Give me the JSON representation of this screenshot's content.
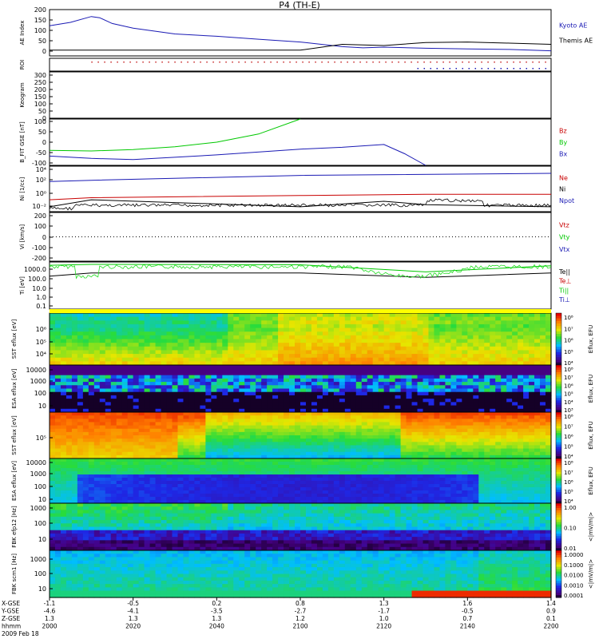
{
  "title": "P4 (TH-E)",
  "chart_data": [
    {
      "type": "line",
      "ylabel": "AE Index",
      "ylim": [
        0,
        200
      ],
      "yticks": [
        "200",
        "150",
        "100",
        "50",
        "0"
      ],
      "series": [
        {
          "name": "Kyoto AE",
          "color": "#1a1ab4",
          "x": [
            "2000",
            "2005",
            "2010",
            "2012",
            "2015",
            "2020",
            "2030",
            "2040",
            "2050",
            "2100",
            "2110",
            "2115",
            "2120",
            "2130",
            "2140",
            "2150",
            "2200"
          ],
          "values": [
            130,
            145,
            170,
            165,
            140,
            120,
            95,
            85,
            72,
            60,
            40,
            35,
            38,
            33,
            30,
            28,
            22
          ]
        },
        {
          "name": "Themis AE",
          "color": "#000000",
          "x": [
            "2000",
            "2020",
            "2040",
            "2100",
            "2110",
            "2120",
            "2130",
            "2140",
            "2150",
            "2200"
          ],
          "values": [
            25,
            25,
            25,
            25,
            50,
            45,
            58,
            60,
            55,
            50
          ]
        }
      ]
    },
    {
      "type": "scatter",
      "ylabel": "ROI",
      "series": [
        {
          "name": "",
          "color": "#c82828",
          "x_start": "2010",
          "x_end": "2200"
        },
        {
          "name": "",
          "color": "#1a1ab4",
          "x_start": "2128",
          "x_end": "2200"
        }
      ]
    },
    {
      "type": "heatmap",
      "ylabel": "Keogram",
      "yticks": [
        "300",
        "250",
        "200",
        "150",
        "100",
        "50",
        "0"
      ]
    },
    {
      "type": "line",
      "ylabel": "B_FIT GSE [nT]",
      "ylim": [
        -100,
        100
      ],
      "yticks": [
        "100",
        "50",
        "0",
        "-50",
        "-100"
      ],
      "series": [
        {
          "name": "Bz",
          "color": "#c80000",
          "x": [],
          "values": []
        },
        {
          "name": "By",
          "color": "#00c800",
          "x": [
            "2000",
            "2010",
            "2020",
            "2030",
            "2040",
            "2050",
            "2100"
          ],
          "values": [
            -35,
            -38,
            -32,
            -20,
            0,
            35,
            100
          ]
        },
        {
          "name": "Bx",
          "color": "#1a1ab4",
          "x": [
            "2000",
            "2010",
            "2020",
            "2040",
            "2100",
            "2110",
            "2120",
            "2125",
            "2130"
          ],
          "values": [
            -60,
            -70,
            -75,
            -55,
            -30,
            -22,
            -10,
            -50,
            -100
          ]
        }
      ]
    },
    {
      "type": "line",
      "ylabel": "Ni [1/cc]",
      "yticks": [
        "10⁴",
        "10²",
        "10⁰",
        "10⁻²"
      ],
      "series": [
        {
          "name": "Ne",
          "color": "#c80000",
          "x": [
            "2000",
            "2010",
            "2100",
            "2130",
            "2200"
          ],
          "values": [
            0.5,
            1.0,
            2.0,
            3.0,
            3.0
          ]
        },
        {
          "name": "Ni",
          "color": "#000000",
          "x": [
            "2000",
            "2010",
            "2100",
            "2120",
            "2130",
            "2200"
          ],
          "values": [
            0.05,
            0.5,
            0.05,
            0.3,
            0.1,
            0.05
          ]
        },
        {
          "name": "Npot",
          "color": "#1a1ab4",
          "x": [
            "2000",
            "2010",
            "2100",
            "2200"
          ],
          "values": [
            200,
            300,
            1500,
            3000
          ]
        }
      ]
    },
    {
      "type": "line",
      "ylabel": "Vi [km/s]",
      "ylim": [
        -200,
        200
      ],
      "yticks": [
        "200",
        "100",
        "0",
        "-100",
        "-200"
      ],
      "series": [
        {
          "name": "Vtz",
          "color": "#c80000",
          "x": [],
          "values": []
        },
        {
          "name": "Vty",
          "color": "#00c800",
          "x": [],
          "values": []
        },
        {
          "name": "Vtx",
          "color": "#1a1ab4",
          "x": [],
          "values": []
        }
      ]
    },
    {
      "type": "line",
      "ylabel": "Ti [eV]",
      "yticks": [
        "1000.0",
        "100.0",
        "10.0",
        "1.0",
        "0.1"
      ],
      "series": [
        {
          "name": "Te||",
          "color": "#000000",
          "x": [
            "2000",
            "2010",
            "2100",
            "2130",
            "2200"
          ],
          "values": [
            100,
            200,
            200,
            80,
            200
          ]
        },
        {
          "name": "Te⊥",
          "color": "#c80000",
          "x": [],
          "values": []
        },
        {
          "name": "Ti||",
          "color": "#00c800",
          "x": [
            "2000",
            "2010",
            "2100",
            "2130",
            "2200"
          ],
          "values": [
            1000,
            1200,
            1100,
            250,
            900
          ]
        },
        {
          "name": "Ti⊥",
          "color": "#1a1ab4",
          "x": [],
          "values": []
        }
      ]
    },
    {
      "type": "heatmap",
      "ylabel": "SST eflux [eV]",
      "yticks": [
        "10⁶",
        "10⁵",
        "10⁴"
      ],
      "colorbar_label": "Eflux, EFU",
      "colorbar_ticks": [
        "10⁸",
        "10⁷",
        "10⁶",
        "10⁵",
        "10⁴"
      ]
    },
    {
      "type": "heatmap",
      "ylabel": "ESA eflux [eV]",
      "yticks": [
        "10000",
        "1000",
        "100",
        "10"
      ],
      "colorbar_label": "Eflux, EFU",
      "colorbar_ticks": [
        "10⁸",
        "10⁷",
        "10⁶",
        "10⁵",
        "10⁴",
        "10³"
      ]
    },
    {
      "type": "heatmap",
      "ylabel": "SST eflux [eV]",
      "yticks": [
        "10⁵"
      ],
      "colorbar_label": "Eflux, EFU",
      "colorbar_ticks": [
        "10⁸",
        "10⁷",
        "10⁶",
        "10⁵",
        "10⁴"
      ]
    },
    {
      "type": "heatmap",
      "ylabel": "ESA eflux [eV]",
      "yticks": [
        "10000",
        "1000",
        "100",
        "10"
      ],
      "colorbar_label": "Eflux, EFU",
      "colorbar_ticks": [
        "10⁸",
        "10⁷",
        "10⁶",
        "10⁵",
        "10⁴"
      ]
    },
    {
      "type": "heatmap",
      "ylabel": "FBK efp12 [Hz]",
      "yticks": [
        "1000",
        "100",
        "10"
      ],
      "colorbar_label": "<|mV/m|>",
      "colorbar_ticks": [
        "1.00",
        "0.10",
        "0.01"
      ]
    },
    {
      "type": "heatmap",
      "ylabel": "FBK scm1 [Hz]",
      "yticks": [
        "1000",
        "100",
        "10"
      ],
      "colorbar_label": "<|mV/m|>",
      "colorbar_ticks": [
        "1.0000",
        "0.1000",
        "0.0100",
        "0.0010",
        "0.0001"
      ]
    }
  ],
  "x_axis": {
    "row_labels": [
      "X-GSE",
      "Y-GSE",
      "Z-GSE",
      "hhmm",
      "2009 Feb 18"
    ],
    "ticks": [
      {
        "values": [
          "-1.1",
          "-4.6",
          "1.3",
          "2000"
        ]
      },
      {
        "values": [
          "-0.5",
          "-4.1",
          "1.3",
          "2020"
        ]
      },
      {
        "values": [
          "0.2",
          "-3.5",
          "1.3",
          "2040"
        ]
      },
      {
        "values": [
          "0.8",
          "-2.7",
          "1.2",
          "2100"
        ]
      },
      {
        "values": [
          "1.3",
          "-1.7",
          "1.0",
          "2120"
        ]
      },
      {
        "values": [
          "1.6",
          "-0.5",
          "0.7",
          "2140"
        ]
      },
      {
        "values": [
          "1.4",
          "0.9",
          "0.1",
          "2200"
        ]
      }
    ]
  }
}
